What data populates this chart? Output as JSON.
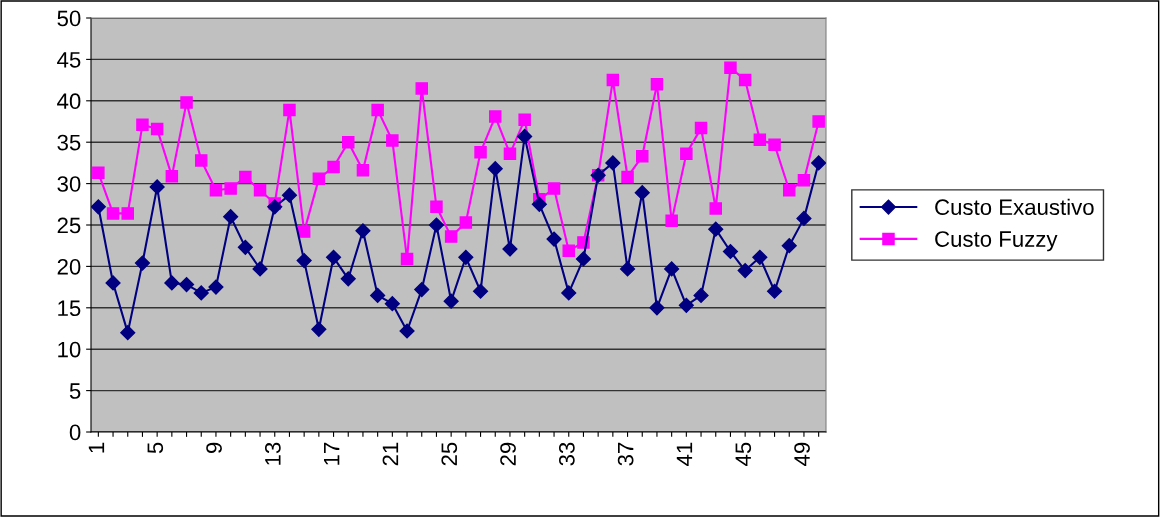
{
  "chart_data": {
    "type": "line",
    "categories": [
      "1",
      null,
      null,
      null,
      "5",
      null,
      null,
      null,
      "9",
      null,
      null,
      null,
      "13",
      null,
      null,
      null,
      "17",
      null,
      null,
      null,
      "21",
      null,
      null,
      null,
      "25",
      null,
      null,
      null,
      "29",
      null,
      null,
      null,
      "33",
      null,
      null,
      null,
      "37",
      null,
      null,
      null,
      "41",
      null,
      null,
      null,
      "45",
      null,
      null,
      null,
      "49",
      null
    ],
    "series": [
      {
        "name": "Custo Exaustivo",
        "color": "#000080",
        "marker": "diamond",
        "values": [
          27.2,
          18,
          12,
          20.4,
          29.6,
          18,
          17.8,
          16.8,
          17.5,
          26,
          22.3,
          19.7,
          27.2,
          28.6,
          20.7,
          12.4,
          21.1,
          18.5,
          24.3,
          16.5,
          15.5,
          12.2,
          17.2,
          25,
          15.8,
          21.1,
          17,
          31.8,
          22.1,
          35.7,
          27.5,
          23.3,
          16.8,
          20.9,
          31,
          32.5,
          19.7,
          28.9,
          15,
          19.7,
          15.3,
          16.5,
          24.5,
          21.8,
          19.5,
          21.1,
          17,
          22.5,
          25.8,
          32.5
        ]
      },
      {
        "name": "Custo Fuzzy",
        "color": "#ff00ff",
        "marker": "square",
        "values": [
          31.3,
          26.4,
          26.4,
          37.1,
          36.6,
          30.9,
          39.8,
          32.8,
          29.2,
          29.4,
          30.8,
          29.2,
          27.6,
          38.9,
          24.2,
          30.6,
          32,
          35,
          31.6,
          38.9,
          35.2,
          20.9,
          41.5,
          27.2,
          23.6,
          25.3,
          33.8,
          38.1,
          33.6,
          37.7,
          28.1,
          29.4,
          21.9,
          22.9,
          31,
          42.5,
          30.8,
          33.3,
          42,
          25.5,
          33.6,
          36.7,
          27,
          44,
          42.5,
          35.3,
          34.7,
          29.2,
          30.4,
          37.5
        ]
      }
    ],
    "ylim": [
      0,
      50
    ],
    "yticks": [
      0,
      5,
      10,
      15,
      20,
      25,
      30,
      35,
      40,
      45,
      50
    ],
    "grid": "y",
    "legend": "right"
  }
}
